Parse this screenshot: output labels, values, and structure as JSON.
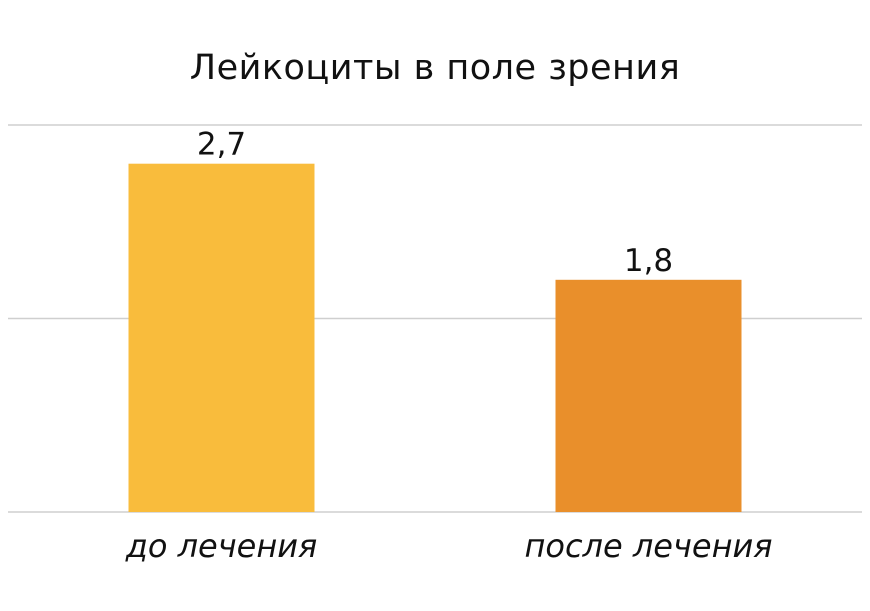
{
  "chart_data": {
    "type": "bar",
    "title": "Лейкоциты в поле зрения",
    "categories": [
      "до лечения",
      "после лечения"
    ],
    "values": [
      2.7,
      1.8
    ],
    "value_labels": [
      "2,7",
      "1,8"
    ],
    "colors": [
      "#F9BC3C",
      "#E98F2B"
    ],
    "ylim": [
      0,
      3.0
    ],
    "grid": true,
    "gridline_values": [
      0,
      1.5,
      3.0
    ],
    "gridline_color": "#CFCFCF"
  }
}
